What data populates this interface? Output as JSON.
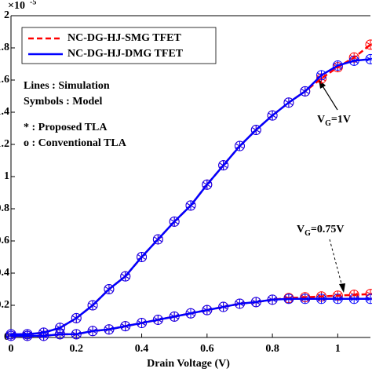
{
  "chart_data": {
    "type": "line",
    "x_label": "Drain Voltage (V)",
    "y_exponent": {
      "base": "×10",
      "power": "-5"
    },
    "x": [
      0,
      0.05,
      0.1,
      0.15,
      0.2,
      0.25,
      0.3,
      0.35,
      0.4,
      0.45,
      0.5,
      0.55,
      0.6,
      0.65,
      0.7,
      0.75,
      0.8,
      0.85,
      0.9,
      0.95,
      1.0,
      1.05,
      1.1
    ],
    "series": [
      {
        "name": "NC-DG-HJ-SMG TFET",
        "color": "#ff0000",
        "dashed": true,
        "curves": [
          [
            0.02,
            0.02,
            0.03,
            0.06,
            0.12,
            0.2,
            0.3,
            0.38,
            0.5,
            0.61,
            0.72,
            0.82,
            0.95,
            1.07,
            1.19,
            1.29,
            1.38,
            1.46,
            1.53,
            1.61,
            1.68,
            1.74,
            1.82
          ],
          [
            0.01,
            0.01,
            0.01,
            0.02,
            0.02,
            0.04,
            0.05,
            0.07,
            0.09,
            0.11,
            0.13,
            0.15,
            0.17,
            0.19,
            0.21,
            0.22,
            0.235,
            0.245,
            0.25,
            0.255,
            0.26,
            0.265,
            0.27
          ]
        ]
      },
      {
        "name": "NC-DG-HJ-DMG TFET",
        "color": "#0000ff",
        "dashed": false,
        "curves": [
          [
            0.02,
            0.02,
            0.03,
            0.06,
            0.12,
            0.2,
            0.3,
            0.38,
            0.5,
            0.61,
            0.72,
            0.82,
            0.95,
            1.07,
            1.19,
            1.29,
            1.38,
            1.46,
            1.53,
            1.63,
            1.69,
            1.72,
            1.73
          ],
          [
            0.01,
            0.01,
            0.01,
            0.02,
            0.02,
            0.04,
            0.05,
            0.07,
            0.09,
            0.11,
            0.13,
            0.15,
            0.17,
            0.19,
            0.21,
            0.22,
            0.235,
            0.24,
            0.24,
            0.24,
            0.24,
            0.24,
            0.24
          ]
        ]
      }
    ],
    "notes": [
      "Lines : Simulation",
      "Symbols : Model",
      "* : Proposed TLA",
      "o : Conventional TLA"
    ],
    "annotations": [
      {
        "main": "V",
        "sub": "G",
        "rest": "=1V"
      },
      {
        "main": "V",
        "sub": "G",
        "rest": "=0.75V"
      }
    ],
    "xlim": [
      0,
      1.1
    ],
    "ylim": [
      0,
      2
    ],
    "xticks": [
      0,
      0.2,
      0.4,
      0.6,
      0.8,
      1
    ],
    "yticks": [
      0,
      0.2,
      0.4,
      0.6,
      0.8,
      1,
      1.2,
      1.4,
      1.6,
      1.8,
      2
    ]
  }
}
